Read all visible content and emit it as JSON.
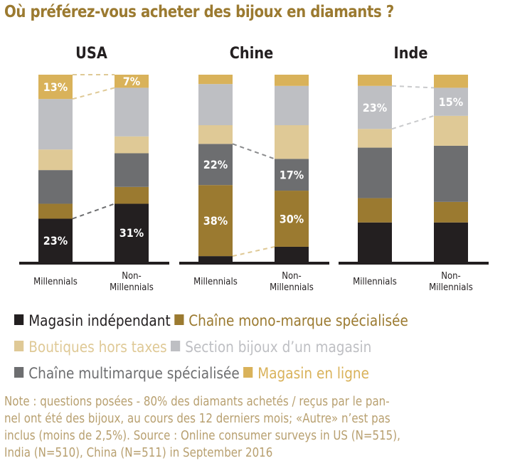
{
  "chart_data": {
    "type": "bar",
    "stacked": true,
    "percent": true,
    "title": "Où préférez-vous acheter des bijoux en diamants ?",
    "categories": [
      "Millennials",
      "Non-Millennials"
    ],
    "category_labels": [
      [
        "Millennials"
      ],
      [
        "Non-",
        "Millennials"
      ]
    ],
    "segment_order_bottom_to_top": [
      "Magasin indépendant",
      "Chaîne mono-marque spécialisée",
      "Chaîne multimarque spécialisée",
      "Boutiques hors taxes",
      "Section bijoux d'un magasin",
      "Magasin en ligne"
    ],
    "colors": {
      "Magasin indépendant": "#231F20",
      "Chaîne mono-marque spécialisée": "#9B7A30",
      "Chaîne multimarque spécialisée": "#6D6E70",
      "Boutiques hors taxes": "#DFC996",
      "Section bijoux d'un magasin": "#BEBFC3",
      "Magasin en ligne": "#D9B25A"
    },
    "panels": [
      {
        "name": "USA",
        "series": [
          {
            "name": "Magasin indépendant",
            "values": [
              23,
              31
            ],
            "labels": [
              "23%",
              "31%"
            ]
          },
          {
            "name": "Chaîne mono-marque spécialisée",
            "values": [
              8,
              9
            ]
          },
          {
            "name": "Chaîne multimarque spécialisée",
            "values": [
              18,
              18
            ]
          },
          {
            "name": "Boutiques hors taxes",
            "values": [
              11,
              9
            ]
          },
          {
            "name": "Section bijoux d'un magasin",
            "values": [
              27,
              26
            ]
          },
          {
            "name": "Magasin en ligne",
            "values": [
              13,
              7
            ],
            "labels": [
              "13%",
              "7%"
            ]
          }
        ],
        "connectors": [
          {
            "series": "Magasin indépendant",
            "edge": "top",
            "color": "#6D6E70"
          },
          {
            "series": "Magasin en ligne",
            "edge": "top",
            "color": "#DFC996"
          },
          {
            "series": "Magasin en ligne",
            "edge": "bottom",
            "color": "#DFC996"
          }
        ]
      },
      {
        "name": "Chine",
        "series": [
          {
            "name": "Magasin indépendant",
            "values": [
              3,
              8
            ]
          },
          {
            "name": "Chaîne mono-marque spécialisée",
            "values": [
              38,
              30
            ],
            "labels": [
              "38%",
              "30%"
            ]
          },
          {
            "name": "Chaîne multimarque spécialisée",
            "values": [
              22,
              17
            ],
            "labels": [
              "22%",
              "17%"
            ]
          },
          {
            "name": "Boutiques hors taxes",
            "values": [
              10,
              18
            ]
          },
          {
            "name": "Section bijoux d'un magasin",
            "values": [
              22,
              21
            ]
          },
          {
            "name": "Magasin en ligne",
            "values": [
              5,
              6
            ]
          }
        ],
        "connectors": [
          {
            "series": "Chaîne multimarque spécialisée",
            "edge": "top",
            "color": "#8A8B8D"
          },
          {
            "series": "Chaîne mono-marque spécialisée",
            "edge": "bottom",
            "color": "#DFC996"
          }
        ]
      },
      {
        "name": "Inde",
        "series": [
          {
            "name": "Magasin indépendant",
            "values": [
              21,
              21
            ]
          },
          {
            "name": "Chaîne mono-marque spécialisée",
            "values": [
              13,
              11
            ]
          },
          {
            "name": "Chaîne multimarque spécialisée",
            "values": [
              27,
              30
            ]
          },
          {
            "name": "Boutiques hors taxes",
            "values": [
              10,
              16
            ]
          },
          {
            "name": "Section bijoux d'un magasin",
            "values": [
              23,
              15
            ],
            "labels": [
              "23%",
              "15%"
            ]
          },
          {
            "name": "Magasin en ligne",
            "values": [
              6,
              7
            ]
          }
        ],
        "connectors": [
          {
            "series": "Section bijoux d'un magasin",
            "edge": "top",
            "color": "#C9CACC"
          },
          {
            "series": "Section bijoux d'un magasin",
            "edge": "bottom",
            "color": "#C9CACC"
          }
        ]
      }
    ],
    "ylim": [
      0,
      100
    ],
    "grid": false
  },
  "legend": {
    "rows": [
      [
        {
          "label": "Magasin indépendant",
          "color": "#231F20",
          "text_color": "#231F20"
        },
        {
          "label": "Chaîne mono-marque spécialisée",
          "color": "#9B7A30",
          "text_color": "#9B7A30"
        }
      ],
      [
        {
          "label": "Boutiques hors taxes",
          "color": "#DFC996",
          "text_color": "#DFC996"
        },
        {
          "label": "Section bijoux d’un magasin",
          "color": "#BEBFC3",
          "text_color": "#BEBFC3"
        }
      ],
      [
        {
          "label": "Chaîne multimarque spécialisée",
          "color": "#6D6E70",
          "text_color": "#6D6E70"
        },
        {
          "label": "Magasin en ligne",
          "color": "#D9B25A",
          "text_color": "#D9B25A"
        }
      ]
    ]
  },
  "note": "Note : questions posées - 80% des diamants achetés / reçus par le pan-nel ont été des bijoux, au cours des 12 derniers mois; «Autre» n’est pas inclus (moins de 2,5%). Source : Online consumer surveys in US (N=515), India (N=510), China (N=511) in September 2016",
  "note_lines": [
    "Note : questions posées - 80% des diamants achetés / reçus par le pan-",
    "nel ont été des bijoux, au cours des 12 derniers mois; «Autre» n’est pas",
    "inclus (moins de 2,5%). Source : Online consumer surveys in US (N=515),",
    "India (N=510), China (N=511) in September 2016"
  ]
}
